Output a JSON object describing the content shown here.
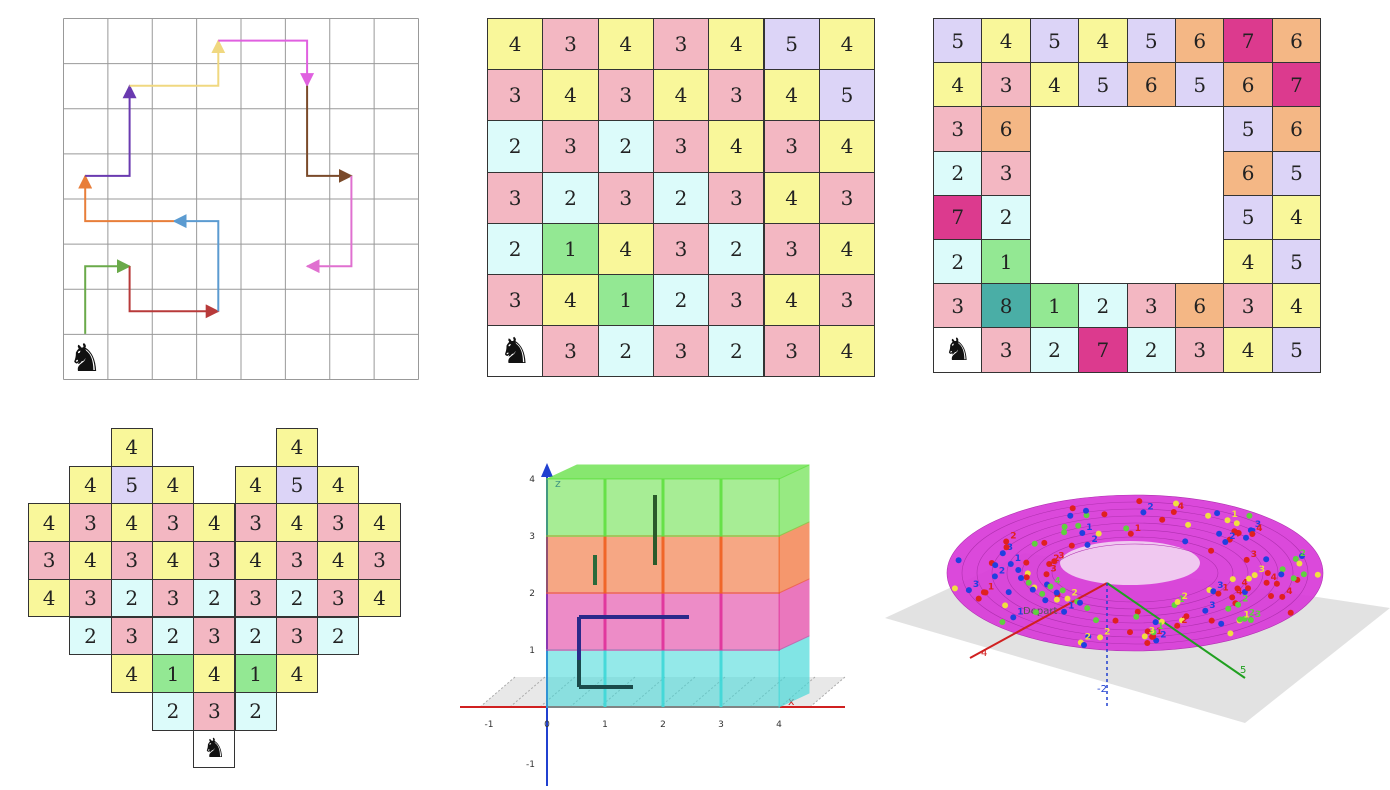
{
  "palette": {
    "1": "#93e893",
    "2": "#dcfbfa",
    "3": "#f3b7c2",
    "4": "#f9f79a",
    "5": "#dcd4f7",
    "6": "#f4b785",
    "7": "#dc3a8e",
    "8": "#4aaea6",
    "line": "#333333",
    "knight": "#111111"
  },
  "panel_paths": {
    "icon": "knight-icon",
    "start": {
      "col": 0,
      "row": 0
    },
    "segments": [
      {
        "color": "#6aaa4a",
        "points": [
          [
            0.5,
            1
          ],
          [
            0.5,
            2.5
          ],
          [
            1.5,
            2.5
          ]
        ]
      },
      {
        "color": "#b83a3a",
        "points": [
          [
            1.5,
            2.5
          ],
          [
            1.5,
            1.5
          ],
          [
            3.5,
            1.5
          ]
        ]
      },
      {
        "color": "#5b9bd1",
        "points": [
          [
            3.5,
            1.5
          ],
          [
            3.5,
            3.5
          ],
          [
            2.5,
            3.5
          ]
        ]
      },
      {
        "color": "#e87e3a",
        "points": [
          [
            2.5,
            3.5
          ],
          [
            0.5,
            3.5
          ],
          [
            0.5,
            4.5
          ]
        ]
      },
      {
        "color": "#6a3ab0",
        "points": [
          [
            0.5,
            4.5
          ],
          [
            1.5,
            4.5
          ],
          [
            1.5,
            6.5
          ]
        ]
      },
      {
        "color": "#f0d880",
        "points": [
          [
            1.5,
            6.5
          ],
          [
            3.5,
            6.5
          ],
          [
            3.5,
            7.5
          ]
        ]
      },
      {
        "color": "#e060e0",
        "points": [
          [
            3.5,
            7.5
          ],
          [
            5.5,
            7.5
          ],
          [
            5.5,
            6.5
          ]
        ]
      },
      {
        "color": "#7a4a2a",
        "points": [
          [
            5.5,
            6.5
          ],
          [
            5.5,
            4.5
          ],
          [
            6.5,
            4.5
          ]
        ]
      },
      {
        "color": "#e070d0",
        "points": [
          [
            6.5,
            4.5
          ],
          [
            6.5,
            2.5
          ],
          [
            5.5,
            2.5
          ]
        ]
      }
    ]
  },
  "panel_7x7": {
    "icon": "knight-icon",
    "rows": [
      [
        "4",
        "3",
        "4",
        "3",
        "4",
        "5",
        "4"
      ],
      [
        "3",
        "4",
        "3",
        "4",
        "3",
        "4",
        "5"
      ],
      [
        "2",
        "3",
        "2",
        "3",
        "4",
        "3",
        "4"
      ],
      [
        "3",
        "2",
        "3",
        "2",
        "3",
        "4",
        "3"
      ],
      [
        "2",
        "1",
        "4",
        "3",
        "2",
        "3",
        "4"
      ],
      [
        "3",
        "4",
        "1",
        "2",
        "3",
        "4",
        "3"
      ],
      [
        "N",
        "3",
        "2",
        "3",
        "2",
        "3",
        "4"
      ]
    ]
  },
  "panel_ring": {
    "icon": "knight-icon",
    "rows": [
      [
        "5",
        "4",
        "5",
        "4",
        "5",
        "6",
        "7",
        "6"
      ],
      [
        "4",
        "3",
        "4",
        "5",
        "6",
        "5",
        "6",
        "7"
      ],
      [
        "3",
        "6",
        "",
        "",
        "",
        "",
        "5",
        "6"
      ],
      [
        "2",
        "3",
        "",
        "",
        "",
        "",
        "6",
        "5"
      ],
      [
        "7",
        "2",
        "",
        "",
        "",
        "",
        "5",
        "4"
      ],
      [
        "2",
        "1",
        "",
        "",
        "",
        "",
        "4",
        "5"
      ],
      [
        "3",
        "8",
        "1",
        "2",
        "3",
        "6",
        "3",
        "4"
      ],
      [
        "N",
        "3",
        "2",
        "7",
        "2",
        "3",
        "4",
        "5"
      ]
    ]
  },
  "panel_heart": {
    "icon": "knight-icon",
    "rows": [
      [
        "",
        "",
        "4",
        "",
        "",
        "",
        "4",
        "",
        ""
      ],
      [
        "",
        "4",
        "5",
        "4",
        "",
        "4",
        "5",
        "4",
        ""
      ],
      [
        "4",
        "3",
        "4",
        "3",
        "4",
        "3",
        "4",
        "3",
        "4"
      ],
      [
        "3",
        "4",
        "3",
        "4",
        "3",
        "4",
        "3",
        "4",
        "3"
      ],
      [
        "4",
        "3",
        "2",
        "3",
        "2",
        "3",
        "2",
        "3",
        "4"
      ],
      [
        "",
        "2",
        "3",
        "2",
        "3",
        "2",
        "3",
        "2",
        ""
      ],
      [
        "",
        "",
        "4",
        "1",
        "4",
        "1",
        "4",
        "",
        ""
      ],
      [
        "",
        "",
        "",
        "2",
        "3",
        "2",
        "",
        "",
        ""
      ],
      [
        "",
        "",
        "",
        "",
        "N",
        "",
        "",
        "",
        ""
      ]
    ]
  },
  "panel_cube": {
    "axis_z_label": "z",
    "axis_x_label": "x",
    "x_ticks": [
      "-1",
      "0",
      "1",
      "2",
      "3",
      "4"
    ],
    "z_ticks": [
      "-1",
      "1",
      "2",
      "3",
      "4"
    ],
    "layers": [
      {
        "color": "#3ed8d8"
      },
      {
        "color": "#e0309a"
      },
      {
        "color": "#f06020"
      },
      {
        "color": "#60e040"
      }
    ]
  },
  "panel_torus": {
    "label_depart": "Depart",
    "axis_labels": [
      "4",
      "5",
      "-2"
    ],
    "surface_color": "#d83ad8",
    "dot_labels": [
      "2",
      "3",
      "4",
      "1"
    ]
  }
}
